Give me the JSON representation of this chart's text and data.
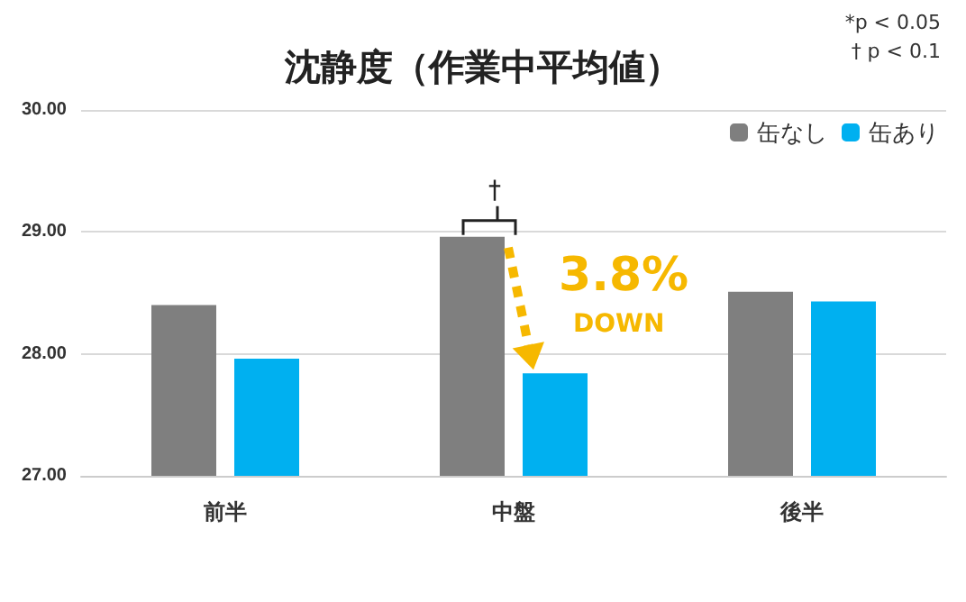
{
  "chart_data": {
    "type": "bar",
    "title": "沈静度（作業中平均値）",
    "categories": [
      "前半",
      "中盤",
      "後半"
    ],
    "series": [
      {
        "name": "缶なし",
        "color": "#7f7f7f",
        "values": [
          28.4,
          28.96,
          28.51
        ]
      },
      {
        "name": "缶あり",
        "color": "#00b0f0",
        "values": [
          27.96,
          27.84,
          28.43
        ]
      }
    ],
    "ylim": [
      27,
      30
    ],
    "yticks": [
      {
        "value": 27,
        "label": "27.00"
      },
      {
        "value": 28,
        "label": "28.00"
      },
      {
        "value": 29,
        "label": "29.00"
      },
      {
        "value": 30,
        "label": "30.00"
      }
    ],
    "grid": "y",
    "legend": "top right",
    "annotations": [
      "*p < 0.05",
      "† p < 0.1",
      "†",
      "3.8%",
      "DOWN"
    ]
  }
}
